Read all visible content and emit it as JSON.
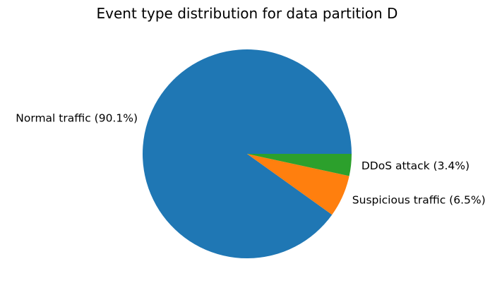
{
  "chart_data": {
    "type": "pie",
    "title": "Event type distribution for data partition D",
    "slices": [
      {
        "label": "Normal traffic (90.1%)",
        "value": 90.1,
        "color": "#1f77b4"
      },
      {
        "label": "Suspicious traffic (6.5%)",
        "value": 6.5,
        "color": "#ff7f0e"
      },
      {
        "label": "DDoS attack (3.4%)",
        "value": 3.4,
        "color": "#2ca02c"
      }
    ],
    "start_angle_deg": 0,
    "direction": "counterclockwise",
    "legend": "none"
  }
}
